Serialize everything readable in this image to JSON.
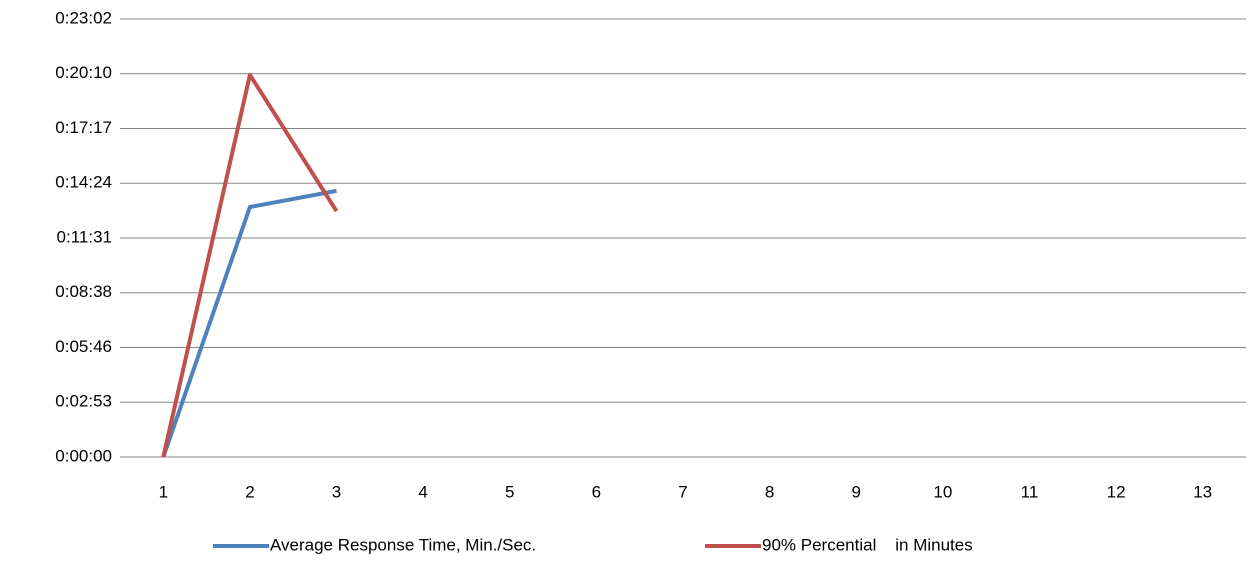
{
  "chart_data": {
    "type": "line",
    "categories": [
      1,
      2,
      3,
      4,
      5,
      6,
      7,
      8,
      9,
      10,
      11,
      12,
      13
    ],
    "series": [
      {
        "name": "Average Response Time, Min./Sec.",
        "color": "#4f81bd",
        "values": [
          0,
          789,
          840,
          null,
          null,
          null,
          null,
          null,
          null,
          null,
          null,
          null,
          null
        ]
      },
      {
        "name": "90% Percential    in Minutes",
        "color": "#c0504d",
        "values": [
          0,
          1206,
          776,
          null,
          null,
          null,
          null,
          null,
          null,
          null,
          null,
          null,
          null
        ]
      }
    ],
    "ylim": [
      0,
      1382.4
    ],
    "yticks": [
      {
        "value": 0,
        "label": "0:00:00"
      },
      {
        "value": 172.8,
        "label": "0:02:53"
      },
      {
        "value": 345.6,
        "label": "0:05:46"
      },
      {
        "value": 518.4,
        "label": "0:08:38"
      },
      {
        "value": 691.2,
        "label": "0:11:31"
      },
      {
        "value": 864,
        "label": "0:14:24"
      },
      {
        "value": 1036.8,
        "label": "0:17:17"
      },
      {
        "value": 1209.6,
        "label": "0:20:10"
      },
      {
        "value": 1382.4,
        "label": "0:23:02"
      }
    ],
    "grid": true,
    "legend": "bottom"
  }
}
